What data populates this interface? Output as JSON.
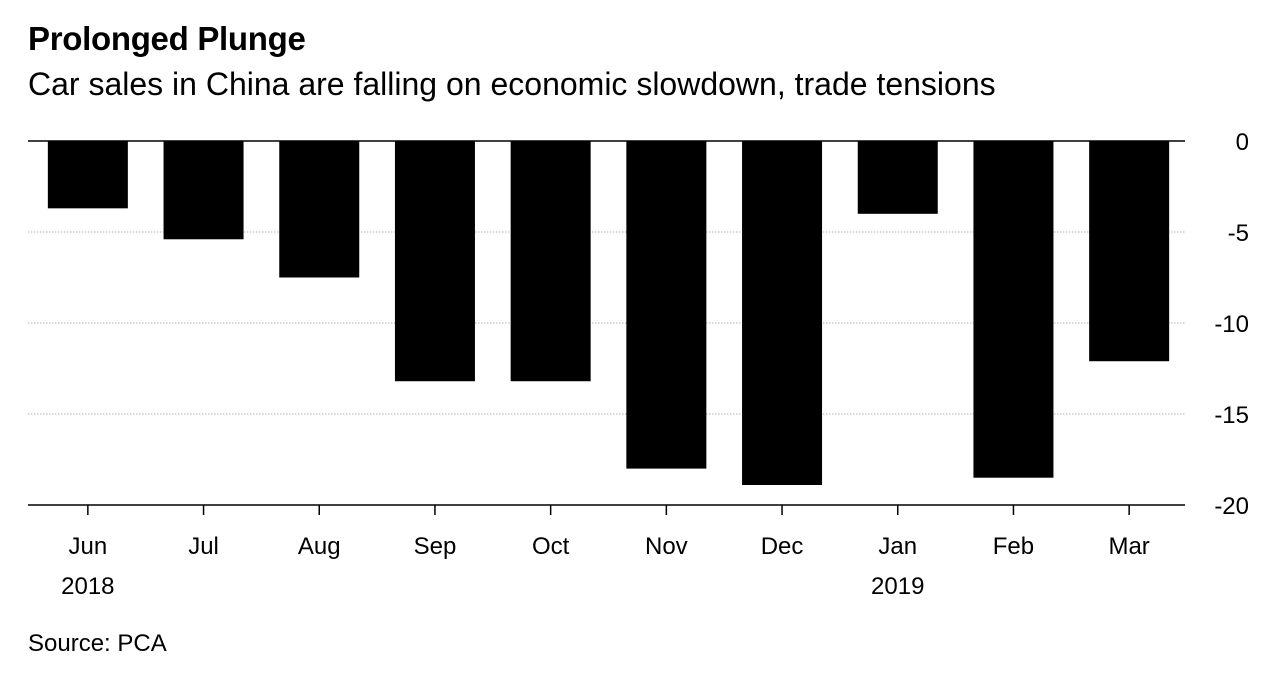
{
  "title": "Prolonged Plunge",
  "subtitle": "Car sales in China are falling on economic slowdown, trade tensions",
  "source": "Source: PCA",
  "chart_data": {
    "type": "bar",
    "title": "Prolonged Plunge",
    "subtitle": "Car sales in China are falling on economic slowdown, trade tensions",
    "xlabel": "",
    "ylabel": "",
    "categories": [
      "Jun",
      "Jul",
      "Aug",
      "Sep",
      "Oct",
      "Nov",
      "Dec",
      "Jan",
      "Feb",
      "Mar"
    ],
    "year_labels": [
      {
        "category": "Jun",
        "label": "2018"
      },
      {
        "category": "Jan",
        "label": "2019"
      }
    ],
    "values": [
      -3.7,
      -5.4,
      -7.5,
      -13.2,
      -13.2,
      -18.0,
      -18.9,
      -4.0,
      -18.5,
      -12.1
    ],
    "ylim": [
      -20,
      0
    ],
    "yticks": [
      0,
      -5,
      -10,
      -15,
      -20
    ],
    "ytick_labels": [
      "0",
      "-5",
      "-10",
      "-15",
      "-20"
    ],
    "y_axis_side": "right",
    "grid": true,
    "bar_color": "#000000",
    "gridline_color": "#cccccc"
  }
}
